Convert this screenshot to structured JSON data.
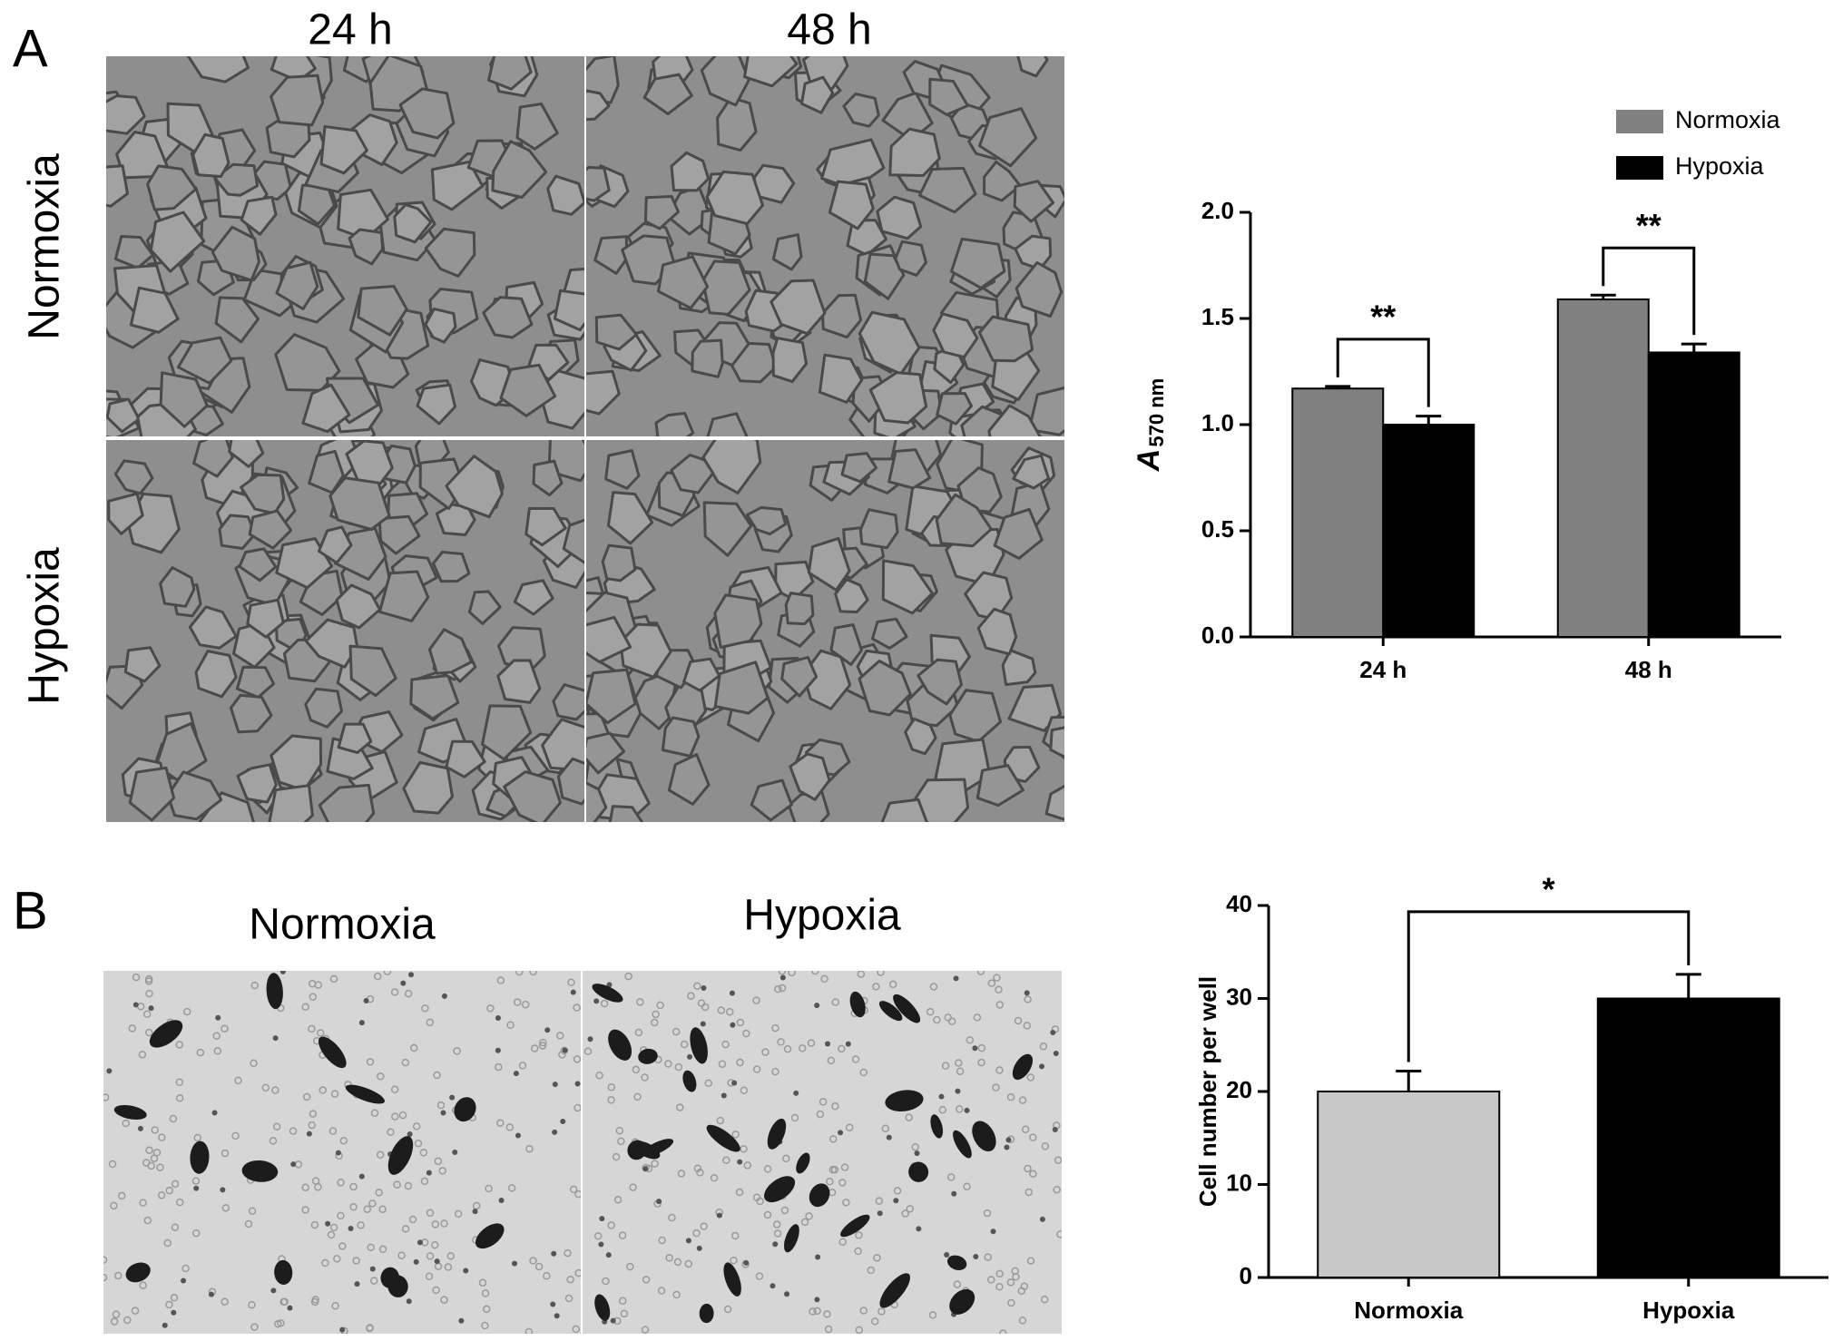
{
  "figure": {
    "panel_a": {
      "label": "A",
      "columns": [
        "24 h",
        "48 h"
      ],
      "rows": [
        "Normoxia",
        "Hypoxia"
      ]
    },
    "panel_b": {
      "label": "B",
      "columns": [
        "Normoxia",
        "Hypoxia"
      ]
    }
  },
  "chart_data": [
    {
      "type": "bar",
      "categories": [
        "24 h",
        "48 h"
      ],
      "series": [
        {
          "name": "Normoxia",
          "color": "#808080",
          "values": [
            1.17,
            1.59
          ],
          "errors": [
            0.01,
            0.02
          ]
        },
        {
          "name": "Hypoxia",
          "color": "#000000",
          "values": [
            1.0,
            1.34
          ],
          "errors": [
            0.04,
            0.04
          ]
        }
      ],
      "y_label": "A",
      "y_label_subscript": "570 nm",
      "ylim": [
        0,
        2
      ],
      "yticks": [
        {
          "value": 0,
          "label": "0.0"
        },
        {
          "value": 0.5,
          "label": "0.5"
        },
        {
          "value": 1,
          "label": "1.0"
        },
        {
          "value": 1.5,
          "label": "1.5"
        },
        {
          "value": 2,
          "label": "2.0"
        }
      ],
      "annotations": [
        "**",
        "**"
      ],
      "legend": "upper right"
    },
    {
      "type": "bar",
      "categories": [
        "Normoxia",
        "Hypoxia"
      ],
      "values": [
        20,
        30
      ],
      "errors": [
        2.2,
        2.6
      ],
      "colors": [
        "#c8c8c8",
        "#000000"
      ],
      "y_label": "Cell number per well",
      "ylim": [
        0,
        40
      ],
      "yticks": [
        0,
        10,
        20,
        30,
        40
      ],
      "annotations": [
        "*"
      ]
    }
  ]
}
